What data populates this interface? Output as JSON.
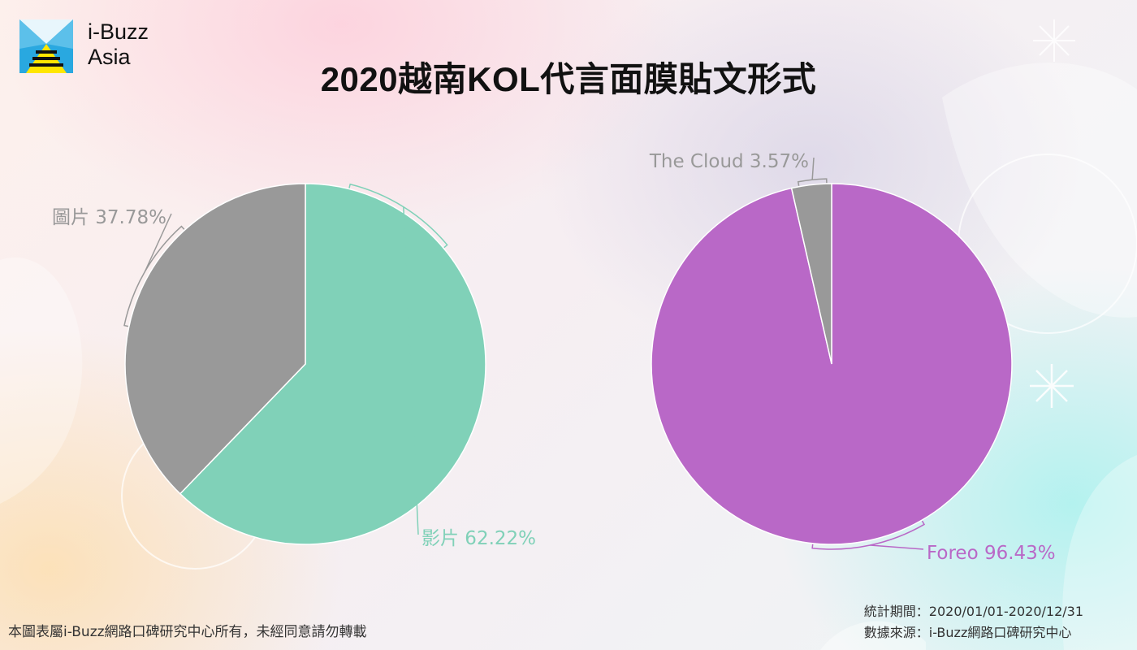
{
  "brand": {
    "line1": "i-Buzz",
    "line2": "Asia"
  },
  "title": "2020越南KOL代言面膜貼文形式",
  "chart_data": [
    {
      "type": "pie",
      "slices": [
        {
          "label": "影片",
          "value": 62.22,
          "display": "影片 62.22%",
          "color": "#80d1b8"
        },
        {
          "label": "圖片",
          "value": 37.78,
          "display": "圖片 37.78%",
          "color": "#999999"
        }
      ]
    },
    {
      "type": "pie",
      "slices": [
        {
          "label": "Foreo",
          "value": 96.43,
          "display": "Foreo 96.43%",
          "color": "#b968c7"
        },
        {
          "label": "The Cloud",
          "value": 3.57,
          "display": "The Cloud 3.57%",
          "color": "#999999"
        }
      ]
    }
  ],
  "footer": {
    "copyright": "本圖表屬i-Buzz網路口碑研究中心所有，未經同意請勿轉載",
    "period": "統計期間：2020/01/01-2020/12/31",
    "source": "數據來源：i-Buzz網路口碑研究中心"
  }
}
